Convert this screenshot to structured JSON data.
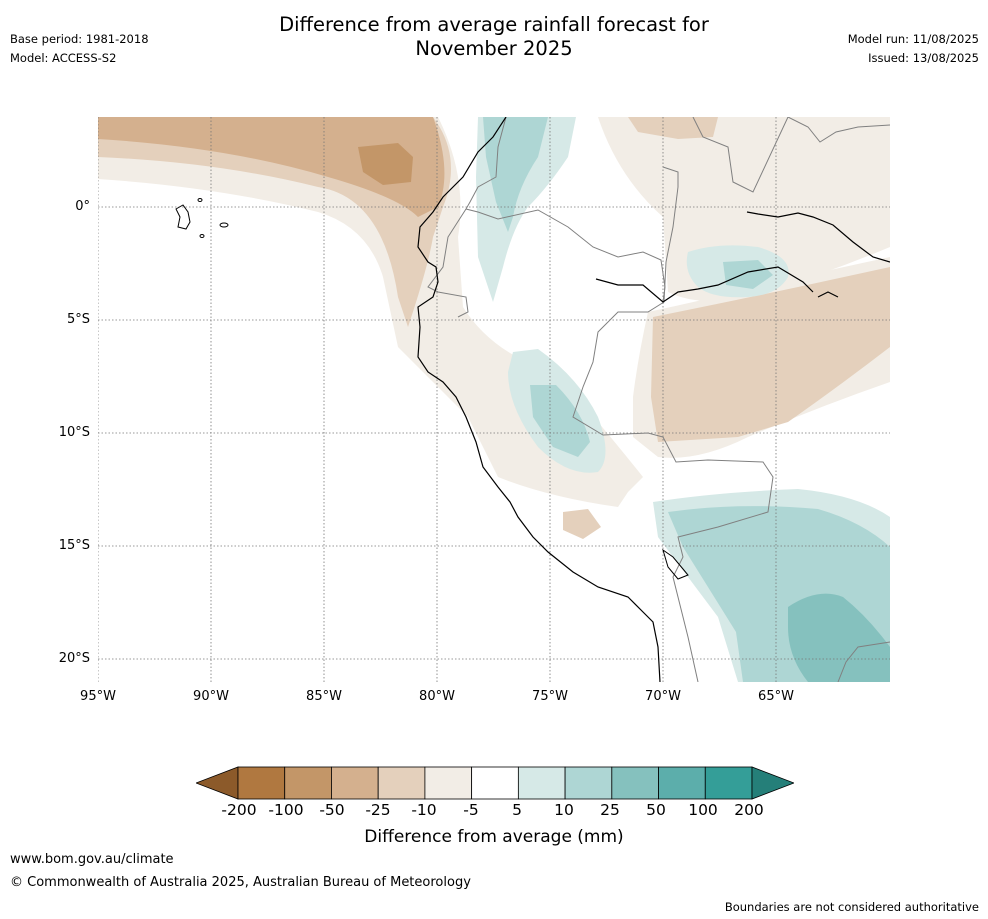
{
  "header": {
    "title_line1": "Difference from average rainfall forecast for",
    "title_line2": "November 2025",
    "base_period": "Base period: 1981-2018",
    "model": "Model: ACCESS-S2",
    "model_run": "Model run: 11/08/2025",
    "issued": "Issued: 13/08/2025"
  },
  "map": {
    "lat_labels": [
      "0°",
      "5°S",
      "10°S",
      "15°S",
      "20°S"
    ],
    "lon_labels": [
      "95°W",
      "90°W",
      "85°W",
      "80°W",
      "75°W",
      "70°W",
      "65°W"
    ]
  },
  "colorbar": {
    "title": "Difference from average (mm)",
    "ticks": [
      "-200",
      "-100",
      "-50",
      "-25",
      "-10",
      "-5",
      "5",
      "10",
      "25",
      "50",
      "100",
      "200"
    ],
    "colors": [
      "#8c5a2a",
      "#b07840",
      "#c39668",
      "#d4b08e",
      "#e4d0bc",
      "#f2ede6",
      "#ffffff",
      "#d6e9e7",
      "#aed6d4",
      "#85c1be",
      "#5caeab",
      "#349e98",
      "#257f79"
    ]
  },
  "footer": {
    "website": "www.bom.gov.au/climate",
    "copyright": "© Commonwealth of Australia 2025, Australian Bureau of Meteorology",
    "disclaimer": "Boundaries are not considered authoritative"
  }
}
